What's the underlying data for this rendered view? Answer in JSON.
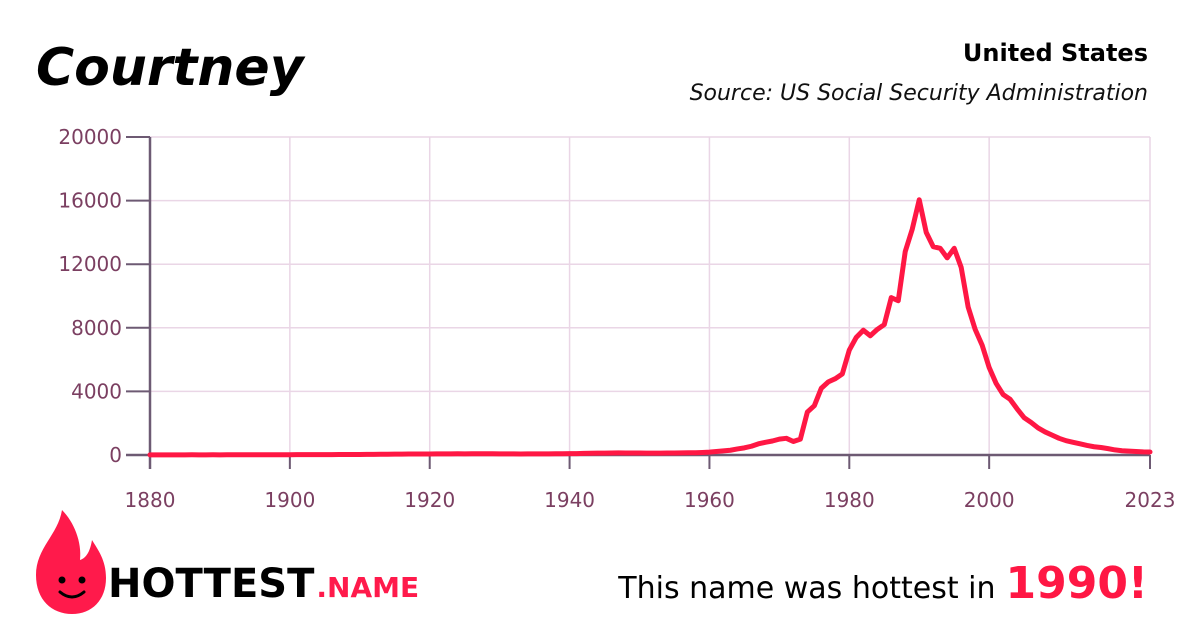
{
  "chart_data": {
    "type": "line",
    "title": "Courtney",
    "subtitle": "United States",
    "source": "Source: US Social Security Administration",
    "color": "#ff1744",
    "grid": true,
    "x": [
      1880,
      1881,
      1882,
      1883,
      1884,
      1885,
      1886,
      1887,
      1888,
      1889,
      1890,
      1891,
      1892,
      1893,
      1894,
      1895,
      1896,
      1897,
      1898,
      1899,
      1900,
      1901,
      1902,
      1903,
      1904,
      1905,
      1906,
      1907,
      1908,
      1909,
      1910,
      1911,
      1912,
      1913,
      1914,
      1915,
      1916,
      1917,
      1918,
      1919,
      1920,
      1921,
      1922,
      1923,
      1924,
      1925,
      1926,
      1927,
      1928,
      1929,
      1930,
      1931,
      1932,
      1933,
      1934,
      1935,
      1936,
      1937,
      1938,
      1939,
      1940,
      1941,
      1942,
      1943,
      1944,
      1945,
      1946,
      1947,
      1948,
      1949,
      1950,
      1951,
      1952,
      1953,
      1954,
      1955,
      1956,
      1957,
      1958,
      1959,
      1960,
      1961,
      1962,
      1963,
      1964,
      1965,
      1966,
      1967,
      1968,
      1969,
      1970,
      1971,
      1972,
      1973,
      1974,
      1975,
      1976,
      1977,
      1978,
      1979,
      1980,
      1981,
      1982,
      1983,
      1984,
      1985,
      1986,
      1987,
      1988,
      1989,
      1990,
      1991,
      1992,
      1993,
      1994,
      1995,
      1996,
      1997,
      1998,
      1999,
      2000,
      2001,
      2002,
      2003,
      2004,
      2005,
      2006,
      2007,
      2008,
      2009,
      2010,
      2011,
      2012,
      2013,
      2014,
      2015,
      2016,
      2017,
      2018,
      2019,
      2020,
      2021,
      2022,
      2023
    ],
    "values": [
      8,
      9,
      10,
      9,
      11,
      10,
      12,
      11,
      10,
      12,
      11,
      12,
      13,
      12,
      14,
      13,
      15,
      14,
      16,
      15,
      18,
      20,
      22,
      21,
      24,
      25,
      27,
      28,
      30,
      32,
      35,
      38,
      42,
      45,
      50,
      55,
      58,
      60,
      62,
      60,
      65,
      68,
      70,
      72,
      75,
      74,
      76,
      78,
      77,
      75,
      72,
      70,
      68,
      66,
      67,
      68,
      70,
      72,
      75,
      78,
      85,
      90,
      100,
      110,
      115,
      120,
      125,
      130,
      128,
      125,
      122,
      120,
      118,
      120,
      125,
      128,
      132,
      138,
      145,
      160,
      180,
      220,
      260,
      300,
      380,
      450,
      550,
      700,
      800,
      880,
      1000,
      1050,
      850,
      1000,
      2700,
      3100,
      4200,
      4600,
      4800,
      5100,
      6600,
      7400,
      7850,
      7500,
      7900,
      8200,
      9900,
      9700,
      12800,
      14200,
      16050,
      14000,
      13100,
      13000,
      12400,
      13000,
      11800,
      9300,
      7900,
      6900,
      5500,
      4500,
      3800,
      3500,
      2900,
      2350,
      2050,
      1700,
      1450,
      1250,
      1050,
      900,
      800,
      700,
      600,
      520,
      470,
      400,
      320,
      270,
      240,
      220,
      200,
      190
    ],
    "xlim": [
      1880,
      2023
    ],
    "xticks": [
      1880,
      1900,
      1920,
      1940,
      1960,
      1980,
      2000,
      2023
    ],
    "ylim": [
      0,
      20000
    ],
    "yticks": [
      0,
      4000,
      8000,
      12000,
      16000,
      20000
    ]
  },
  "branding": {
    "logo": "HOTTEST",
    "logo_suffix": ".NAME"
  },
  "footer": {
    "text": "This name was hottest in",
    "year": "1990!"
  }
}
